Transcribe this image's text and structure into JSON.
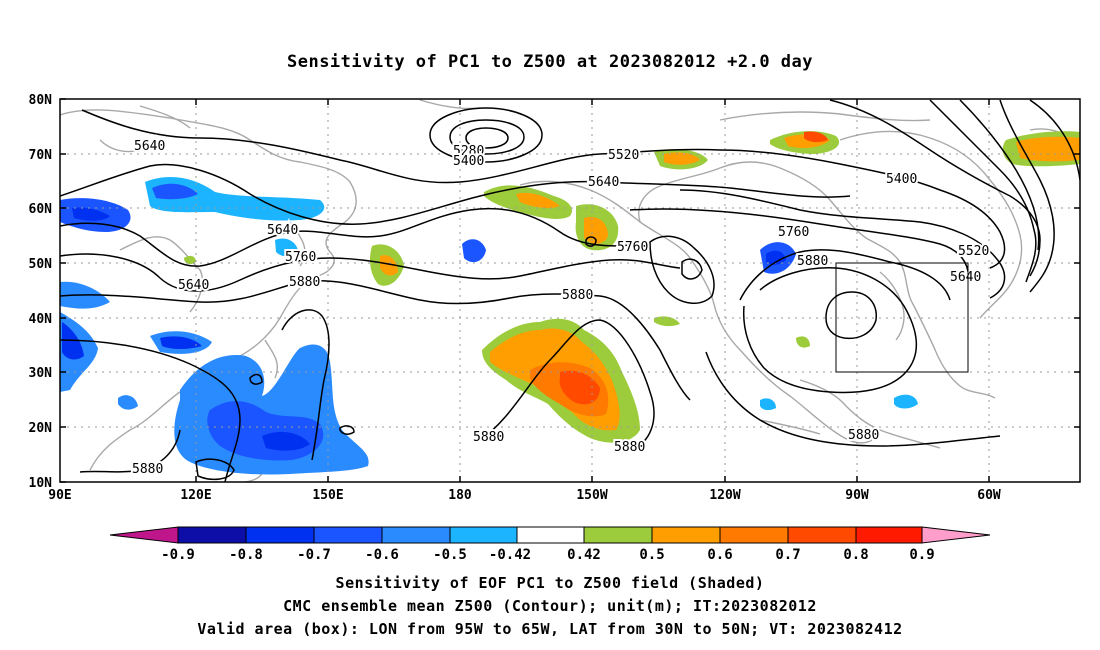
{
  "title": "Sensitivity of PC1 to Z500 at 2023082012 +2.0 day",
  "axes": {
    "lat_labels": [
      "80N",
      "70N",
      "60N",
      "50N",
      "40N",
      "30N",
      "20N",
      "10N"
    ],
    "lon_labels": [
      "90E",
      "120E",
      "150E",
      "180",
      "150W",
      "120W",
      "90W",
      "60W"
    ]
  },
  "contour_labels": [
    "5640",
    "5640",
    "5640",
    "5760",
    "5880",
    "5280",
    "5400",
    "5520",
    "5640",
    "5760",
    "5400",
    "5760",
    "5880",
    "5520",
    "5640",
    "5880",
    "5880",
    "5880",
    "5880",
    "5880"
  ],
  "colorbar": {
    "labels": [
      "-0.9",
      "-0.8",
      "-0.7",
      "-0.6",
      "-0.5",
      "-0.42",
      "0.42",
      "0.5",
      "0.6",
      "0.7",
      "0.8",
      "0.9"
    ],
    "colors": [
      "#c0168c",
      "#0d0da8",
      "#0030f0",
      "#1a55ff",
      "#2a8bff",
      "#1db4ff",
      "#17d4ff",
      "#ffffff",
      "#9ccc3c",
      "#ff9e00",
      "#ff7a00",
      "#ff4a00",
      "#ff1a00",
      "#ff9ecb"
    ]
  },
  "captions": {
    "line1": "Sensitivity of EOF PC1 to Z500 field (Shaded)",
    "line2": "CMC ensemble mean Z500 (Contour); unit(m); IT:2023082012",
    "line3": "Valid area (box): LON from 95W to 65W, LAT from 30N to 50N; VT: 2023082412"
  }
}
